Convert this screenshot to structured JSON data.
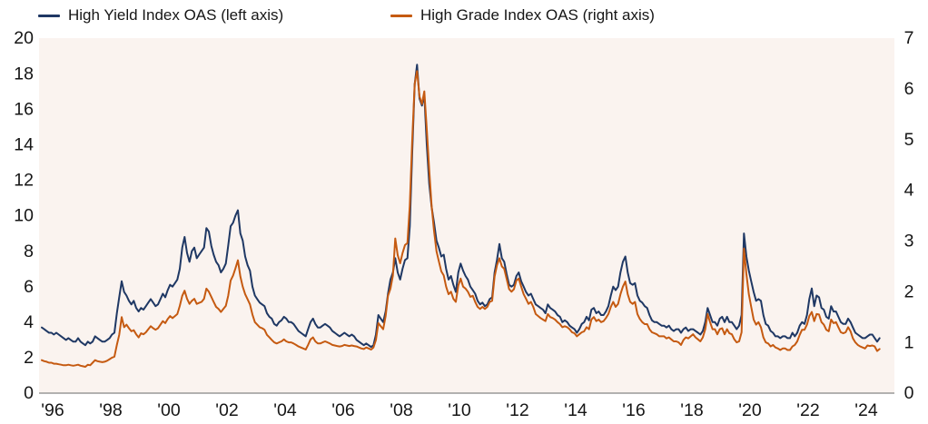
{
  "legend": {
    "items": [
      {
        "name": "high-yield",
        "label": "High Yield Index OAS (left axis)",
        "color": "#1f3864"
      },
      {
        "name": "high-grade",
        "label": "High Grade Index OAS (right axis)",
        "color": "#c55a11"
      }
    ]
  },
  "chart_data": {
    "type": "line",
    "x_start_year": 1996,
    "points_per_year": 12,
    "x_tick_labels": [
      "'96",
      "'98",
      "'00",
      "'02",
      "'04",
      "'06",
      "'08",
      "'10",
      "'12",
      "'14",
      "'16",
      "'18",
      "'20",
      "'22",
      "'24"
    ],
    "left_axis": {
      "ticks": [
        0,
        2,
        4,
        6,
        8,
        10,
        12,
        14,
        16,
        18,
        20
      ],
      "range": [
        0,
        20
      ]
    },
    "right_axis": {
      "ticks": [
        0,
        1,
        2,
        3,
        4,
        5,
        6,
        7
      ],
      "range": [
        0,
        7
      ]
    },
    "grid": false,
    "legend_position": "top",
    "plot_bg": "#faf3ef",
    "axis_line_color": "#999999",
    "text_color": "#161616",
    "series": [
      {
        "name": "High Yield Index OAS",
        "axis": "left",
        "color": "#1f3864",
        "values": [
          3.7,
          3.6,
          3.5,
          3.4,
          3.4,
          3.3,
          3.4,
          3.3,
          3.2,
          3.1,
          3.0,
          3.1,
          3.0,
          2.9,
          2.9,
          3.1,
          2.9,
          2.8,
          2.7,
          2.9,
          2.8,
          2.9,
          3.2,
          3.1,
          3.0,
          2.9,
          2.9,
          3.0,
          3.1,
          3.3,
          3.4,
          4.5,
          5.4,
          6.3,
          5.7,
          5.5,
          5.2,
          5.0,
          5.2,
          4.8,
          4.6,
          4.8,
          4.7,
          4.9,
          5.1,
          5.3,
          5.1,
          4.9,
          5.0,
          5.3,
          5.6,
          5.4,
          5.8,
          6.1,
          6.0,
          6.2,
          6.4,
          7.0,
          8.2,
          8.8,
          7.9,
          7.4,
          8.0,
          8.2,
          7.6,
          7.8,
          8.0,
          8.2,
          9.3,
          9.1,
          8.3,
          7.8,
          7.4,
          7.2,
          6.8,
          7.0,
          7.3,
          8.3,
          9.4,
          9.6,
          10.0,
          10.3,
          9.0,
          8.6,
          7.7,
          7.2,
          6.9,
          6.0,
          5.5,
          5.3,
          5.1,
          5.0,
          4.9,
          4.5,
          4.3,
          4.2,
          3.9,
          3.8,
          4.0,
          4.1,
          4.3,
          4.2,
          4.0,
          4.0,
          3.9,
          3.7,
          3.5,
          3.4,
          3.3,
          3.2,
          3.6,
          4.0,
          4.2,
          3.9,
          3.7,
          3.7,
          3.8,
          3.9,
          3.8,
          3.7,
          3.5,
          3.4,
          3.3,
          3.2,
          3.3,
          3.4,
          3.3,
          3.2,
          3.3,
          3.2,
          3.0,
          2.9,
          2.8,
          2.7,
          2.8,
          2.7,
          2.6,
          2.7,
          3.3,
          4.4,
          4.2,
          4.0,
          4.6,
          5.6,
          6.4,
          6.8,
          7.6,
          6.8,
          6.4,
          7.0,
          7.5,
          7.6,
          9.4,
          13.6,
          17.4,
          18.5,
          16.6,
          16.2,
          16.8,
          14.0,
          11.8,
          10.5,
          9.6,
          8.6,
          8.2,
          7.7,
          7.8,
          7.0,
          6.4,
          6.6,
          6.1,
          5.7,
          6.8,
          7.3,
          6.9,
          6.6,
          6.4,
          6.0,
          5.8,
          5.6,
          5.2,
          5.0,
          5.1,
          4.9,
          5.0,
          5.3,
          5.4,
          6.8,
          7.5,
          8.4,
          7.6,
          7.4,
          6.7,
          6.1,
          6.0,
          6.1,
          6.6,
          6.8,
          6.3,
          6.0,
          5.7,
          5.5,
          5.6,
          5.3,
          5.0,
          4.9,
          4.8,
          4.7,
          4.5,
          5.0,
          4.8,
          4.7,
          4.6,
          4.4,
          4.3,
          4.0,
          4.1,
          4.0,
          3.8,
          3.7,
          3.6,
          3.4,
          3.6,
          3.9,
          4.0,
          4.3,
          4.1,
          4.7,
          4.8,
          4.5,
          4.6,
          4.4,
          4.4,
          4.6,
          4.9,
          5.5,
          6.0,
          5.8,
          6.0,
          6.8,
          7.4,
          7.7,
          6.8,
          6.2,
          6.1,
          6.2,
          5.5,
          5.2,
          5.1,
          4.9,
          4.8,
          4.4,
          4.1,
          4.0,
          4.0,
          3.9,
          3.8,
          3.8,
          3.7,
          3.8,
          3.6,
          3.5,
          3.6,
          3.6,
          3.4,
          3.6,
          3.7,
          3.5,
          3.6,
          3.6,
          3.5,
          3.4,
          3.3,
          3.5,
          4.0,
          4.8,
          4.4,
          4.0,
          4.0,
          3.8,
          4.2,
          4.3,
          4.0,
          4.3,
          4.0,
          4.0,
          3.8,
          3.6,
          3.8,
          4.4,
          9.0,
          7.7,
          6.9,
          6.3,
          5.7,
          5.2,
          5.3,
          5.2,
          4.4,
          3.9,
          3.8,
          3.5,
          3.4,
          3.2,
          3.2,
          3.1,
          3.2,
          3.2,
          3.1,
          3.1,
          3.4,
          3.2,
          3.4,
          3.8,
          4.0,
          3.9,
          4.4,
          5.3,
          5.9,
          4.9,
          5.5,
          5.4,
          4.8,
          4.7,
          4.3,
          4.2,
          4.9,
          4.6,
          4.6,
          4.3,
          4.0,
          3.9,
          3.9,
          4.2,
          4.0,
          3.7,
          3.4,
          3.3,
          3.2,
          3.1,
          3.1,
          3.2,
          3.3,
          3.3,
          3.1,
          2.9,
          3.1
        ]
      },
      {
        "name": "High Grade Index OAS",
        "axis": "right",
        "color": "#c55a11",
        "values": [
          0.65,
          0.63,
          0.62,
          0.6,
          0.6,
          0.58,
          0.58,
          0.57,
          0.56,
          0.55,
          0.55,
          0.56,
          0.55,
          0.54,
          0.55,
          0.56,
          0.54,
          0.53,
          0.52,
          0.56,
          0.55,
          0.6,
          0.65,
          0.63,
          0.62,
          0.61,
          0.62,
          0.64,
          0.67,
          0.7,
          0.72,
          0.95,
          1.15,
          1.5,
          1.3,
          1.35,
          1.28,
          1.22,
          1.24,
          1.16,
          1.1,
          1.18,
          1.16,
          1.2,
          1.26,
          1.32,
          1.28,
          1.25,
          1.28,
          1.35,
          1.42,
          1.38,
          1.46,
          1.52,
          1.48,
          1.52,
          1.56,
          1.72,
          1.92,
          2.02,
          1.86,
          1.76,
          1.82,
          1.86,
          1.76,
          1.78,
          1.8,
          1.86,
          2.06,
          2.0,
          1.9,
          1.8,
          1.7,
          1.66,
          1.6,
          1.66,
          1.72,
          1.92,
          2.22,
          2.32,
          2.46,
          2.62,
          2.3,
          2.1,
          1.95,
          1.85,
          1.75,
          1.55,
          1.4,
          1.35,
          1.3,
          1.28,
          1.25,
          1.15,
          1.1,
          1.05,
          1.0,
          0.98,
          1.0,
          1.02,
          1.06,
          1.02,
          1.0,
          1.0,
          0.98,
          0.95,
          0.92,
          0.9,
          0.88,
          0.86,
          0.95,
          1.06,
          1.1,
          1.02,
          0.98,
          0.98,
          1.0,
          1.02,
          1.0,
          0.98,
          0.95,
          0.94,
          0.93,
          0.92,
          0.93,
          0.95,
          0.94,
          0.93,
          0.94,
          0.93,
          0.92,
          0.9,
          0.88,
          0.87,
          0.9,
          0.88,
          0.86,
          0.9,
          1.05,
          1.38,
          1.32,
          1.26,
          1.52,
          1.92,
          2.06,
          2.32,
          3.05,
          2.72,
          2.56,
          2.76,
          2.92,
          2.96,
          3.7,
          5.0,
          6.1,
          6.35,
          5.85,
          5.7,
          5.95,
          5.2,
          4.4,
          3.7,
          3.2,
          2.8,
          2.6,
          2.4,
          2.32,
          2.1,
          1.95,
          2.0,
          1.86,
          1.8,
          2.12,
          2.26,
          2.1,
          2.06,
          2.0,
          1.9,
          1.92,
          1.8,
          1.7,
          1.66,
          1.7,
          1.66,
          1.7,
          1.8,
          1.82,
          2.3,
          2.52,
          2.66,
          2.5,
          2.45,
          2.25,
          2.05,
          2.0,
          2.05,
          2.22,
          2.26,
          2.1,
          1.95,
          1.86,
          1.76,
          1.8,
          1.7,
          1.56,
          1.52,
          1.48,
          1.45,
          1.42,
          1.56,
          1.5,
          1.48,
          1.45,
          1.4,
          1.36,
          1.3,
          1.32,
          1.3,
          1.26,
          1.2,
          1.18,
          1.12,
          1.16,
          1.2,
          1.22,
          1.3,
          1.26,
          1.45,
          1.5,
          1.42,
          1.45,
          1.4,
          1.42,
          1.48,
          1.56,
          1.7,
          1.8,
          1.7,
          1.76,
          1.95,
          2.1,
          2.2,
          1.95,
          1.8,
          1.76,
          1.8,
          1.56,
          1.46,
          1.4,
          1.36,
          1.36,
          1.26,
          1.2,
          1.18,
          1.16,
          1.12,
          1.12,
          1.12,
          1.08,
          1.1,
          1.06,
          1.02,
          1.02,
          1.0,
          0.95,
          1.05,
          1.1,
          1.08,
          1.12,
          1.16,
          1.1,
          1.06,
          1.02,
          1.1,
          1.26,
          1.56,
          1.4,
          1.26,
          1.26,
          1.16,
          1.26,
          1.28,
          1.16,
          1.26,
          1.18,
          1.16,
          1.06,
          1.0,
          1.02,
          1.2,
          2.85,
          2.35,
          1.95,
          1.7,
          1.45,
          1.35,
          1.4,
          1.3,
          1.1,
          1.0,
          0.98,
          0.92,
          0.95,
          0.9,
          0.88,
          0.85,
          0.88,
          0.88,
          0.85,
          0.85,
          0.92,
          0.95,
          1.02,
          1.15,
          1.25,
          1.25,
          1.35,
          1.52,
          1.6,
          1.42,
          1.56,
          1.55,
          1.4,
          1.35,
          1.25,
          1.22,
          1.45,
          1.38,
          1.4,
          1.3,
          1.2,
          1.18,
          1.2,
          1.3,
          1.22,
          1.08,
          1.0,
          0.95,
          0.92,
          0.9,
          0.88,
          0.94,
          0.93,
          0.94,
          0.92,
          0.83,
          0.87
        ]
      }
    ]
  }
}
